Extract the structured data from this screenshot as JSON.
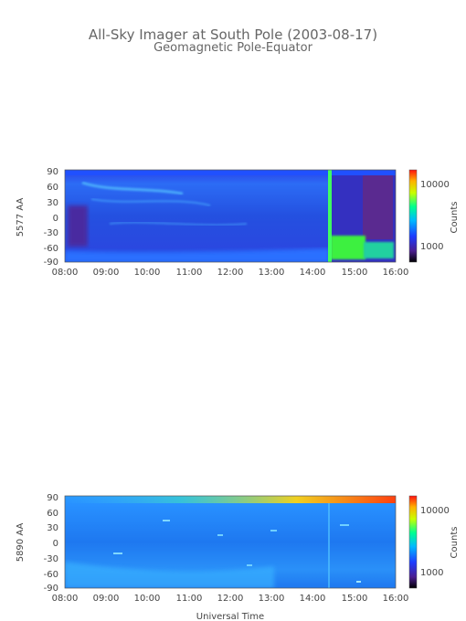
{
  "title_line1": "All-Sky Imager at South Pole (2003-08-17)",
  "title_line2": "Geomagnetic Pole-Equator",
  "xlabel": "Universal Time",
  "chart_data": [
    {
      "type": "heatmap",
      "ylabel": "5577 AA",
      "x_ticks": [
        "08:00",
        "09:00",
        "10:00",
        "11:00",
        "12:00",
        "13:00",
        "14:00",
        "15:00",
        "16:00"
      ],
      "y_ticks": [
        "90",
        "60",
        "30",
        "0",
        "-30",
        "-60",
        "-90"
      ],
      "xlim": [
        "08:00",
        "16:00"
      ],
      "ylim": [
        -90,
        90
      ],
      "colorbar": {
        "label": "Counts",
        "ticks": [
          "10000",
          "1000"
        ],
        "scale": "log"
      },
      "colors": {
        "low": "#3a1a8a",
        "mid": "#2a6aff",
        "high": "#3fe0e0",
        "peak": "#4cff3c"
      }
    },
    {
      "type": "heatmap",
      "ylabel": "5890 AA",
      "x_ticks": [
        "08:00",
        "09:00",
        "10:00",
        "11:00",
        "12:00",
        "13:00",
        "14:00",
        "15:00",
        "16:00"
      ],
      "y_ticks": [
        "90",
        "60",
        "30",
        "0",
        "-30",
        "-60",
        "-90"
      ],
      "xlim": [
        "08:00",
        "16:00"
      ],
      "ylim": [
        -90,
        90
      ],
      "colorbar": {
        "label": "Counts",
        "ticks": [
          "10000",
          "1000"
        ],
        "scale": "log"
      },
      "colors": {
        "low": "#1a70f0",
        "mid": "#30a8ff",
        "high": "#f0e020",
        "peak": "#ff3010"
      }
    }
  ]
}
